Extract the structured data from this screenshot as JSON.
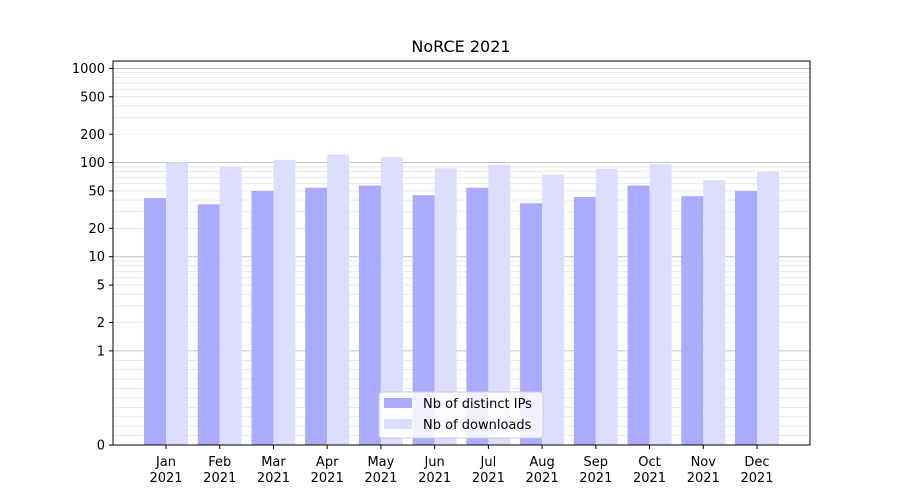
{
  "chart_data": {
    "type": "bar",
    "title": "NoRCE 2021",
    "xlabel": "",
    "ylabel": "",
    "yscale": "symlog",
    "ylim": [
      0,
      1200
    ],
    "yticks": [
      0,
      1,
      2,
      5,
      10,
      20,
      50,
      100,
      200,
      500,
      1000
    ],
    "grid": true,
    "legend_position": "bottom-center",
    "categories": [
      "Jan\n2021",
      "Feb\n2021",
      "Mar\n2021",
      "Apr\n2021",
      "May\n2021",
      "Jun\n2021",
      "Jul\n2021",
      "Aug\n2021",
      "Sep\n2021",
      "Oct\n2021",
      "Nov\n2021",
      "Dec\n2021"
    ],
    "series": [
      {
        "name": "Nb of distinct IPs",
        "color": "#aaaaff",
        "values": [
          42,
          36,
          50,
          54,
          57,
          45,
          54,
          37,
          43,
          57,
          44,
          50
        ]
      },
      {
        "name": "Nb of downloads",
        "color": "#ddddff",
        "values": [
          100,
          90,
          107,
          122,
          115,
          87,
          95,
          75,
          86,
          97,
          65,
          80
        ]
      }
    ]
  }
}
